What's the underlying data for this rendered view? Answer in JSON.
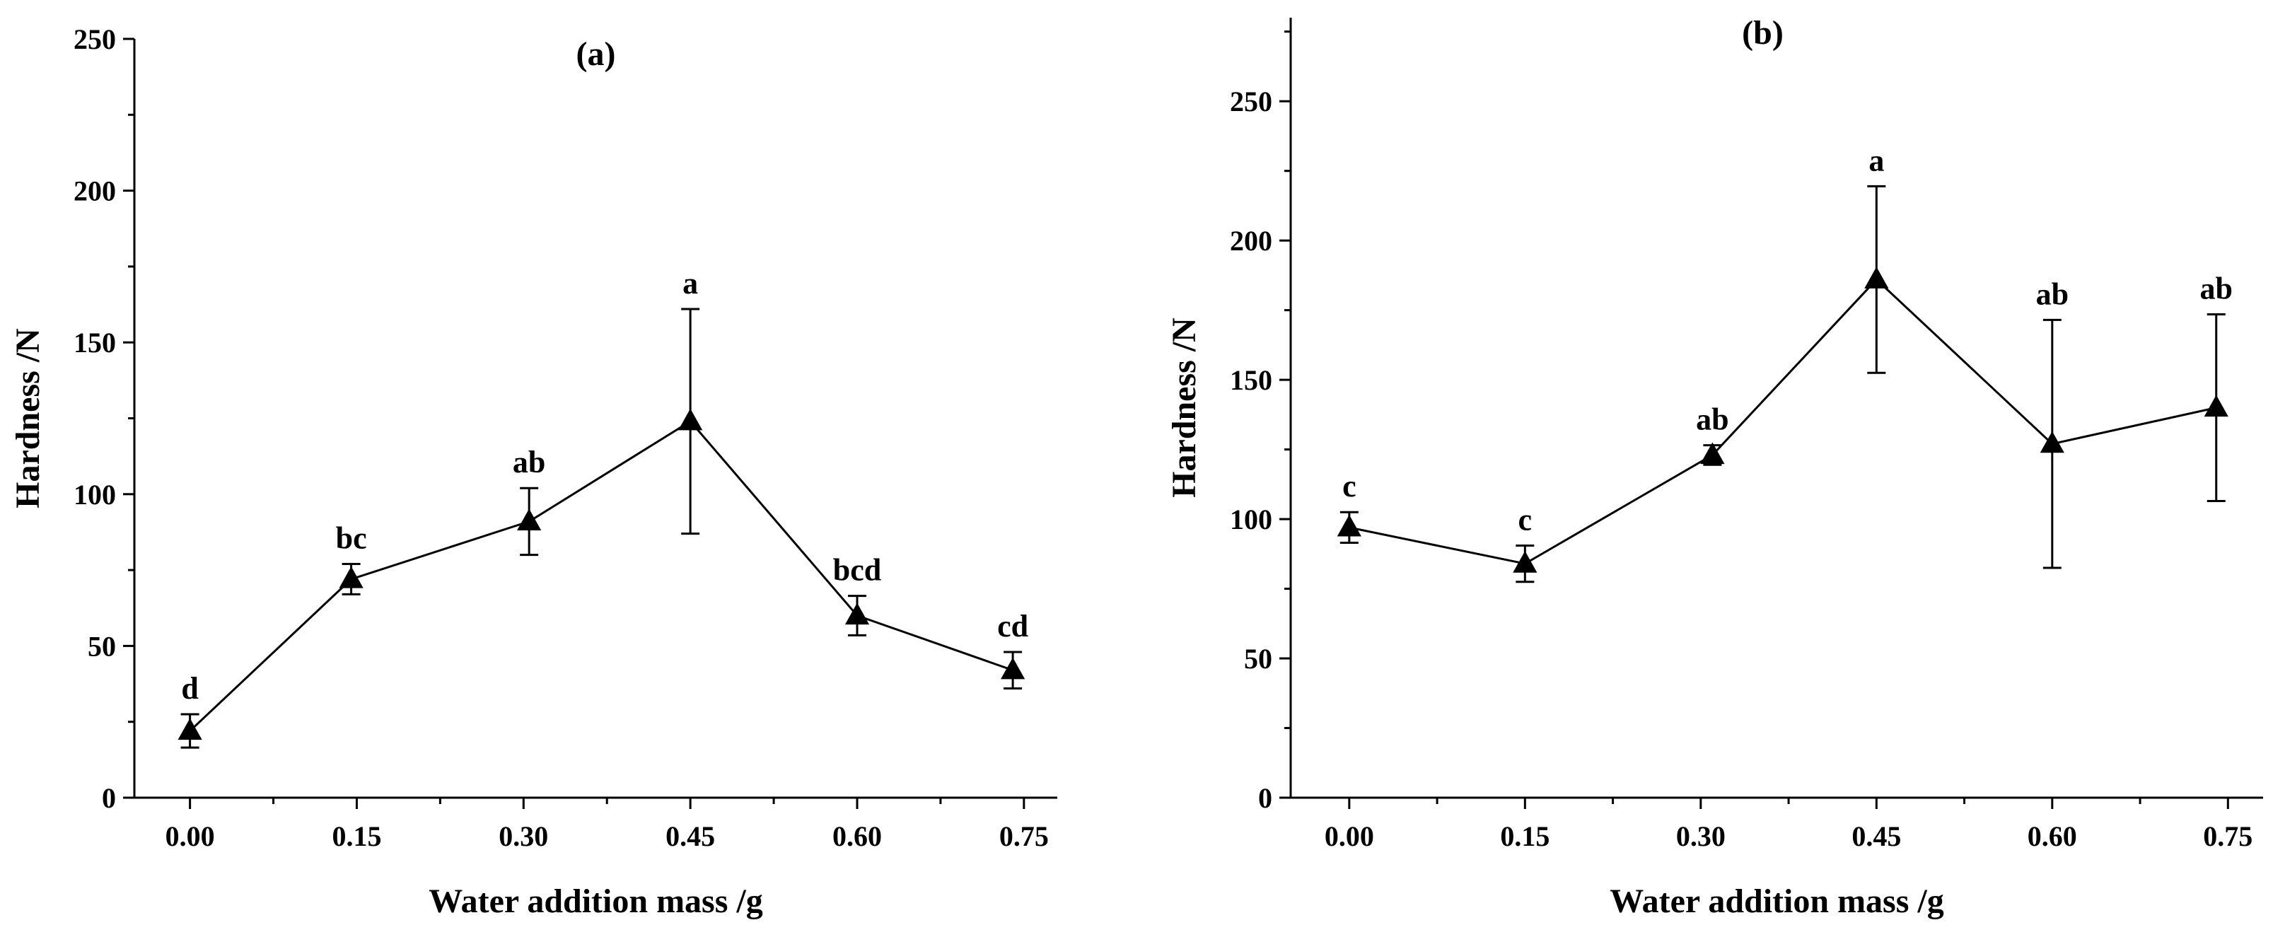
{
  "chart_data": [
    {
      "type": "line",
      "title": "(a)",
      "xlabel": "Water addition mass /g",
      "ylabel": "Hardness /N",
      "x": [
        0.0,
        0.15,
        0.3,
        0.45,
        0.6,
        0.75
      ],
      "x_tick_labels": [
        "0.00",
        "0.15",
        "0.30",
        "0.45",
        "0.60",
        "0.75"
      ],
      "xlim": [
        -0.05,
        0.78
      ],
      "ylim": [
        0,
        250
      ],
      "y_ticks": [
        0,
        50,
        100,
        150,
        200,
        250
      ],
      "series": [
        {
          "name": "Hardness",
          "x": [
            0.0,
            0.145,
            0.305,
            0.45,
            0.6,
            0.74
          ],
          "y": [
            22,
            72,
            91,
            124,
            60,
            42
          ],
          "err": [
            5.5,
            5,
            11,
            37,
            6.5,
            6
          ],
          "letters": [
            "d",
            "bc",
            "ab",
            "a",
            "bcd",
            "cd"
          ]
        }
      ]
    },
    {
      "type": "line",
      "title": "(b)",
      "xlabel": "Water addition mass /g",
      "ylabel": "Hardness /N",
      "x": [
        0.0,
        0.15,
        0.3,
        0.45,
        0.6,
        0.75
      ],
      "x_tick_labels": [
        "0.00",
        "0.15",
        "0.30",
        "0.45",
        "0.60",
        "0.75"
      ],
      "xlim": [
        -0.05,
        0.78
      ],
      "ylim": [
        0,
        280
      ],
      "y_ticks": [
        0,
        50,
        100,
        150,
        200,
        250
      ],
      "series": [
        {
          "name": "Hardness",
          "x": [
            0.0,
            0.15,
            0.31,
            0.45,
            0.6,
            0.74
          ],
          "y": [
            97,
            84,
            123,
            186,
            127,
            140
          ],
          "err": [
            5.5,
            6.5,
            3.5,
            33.5,
            44.5,
            33.5
          ],
          "letters": [
            "c",
            "c",
            "ab",
            "a",
            "ab",
            "ab"
          ]
        }
      ]
    }
  ]
}
